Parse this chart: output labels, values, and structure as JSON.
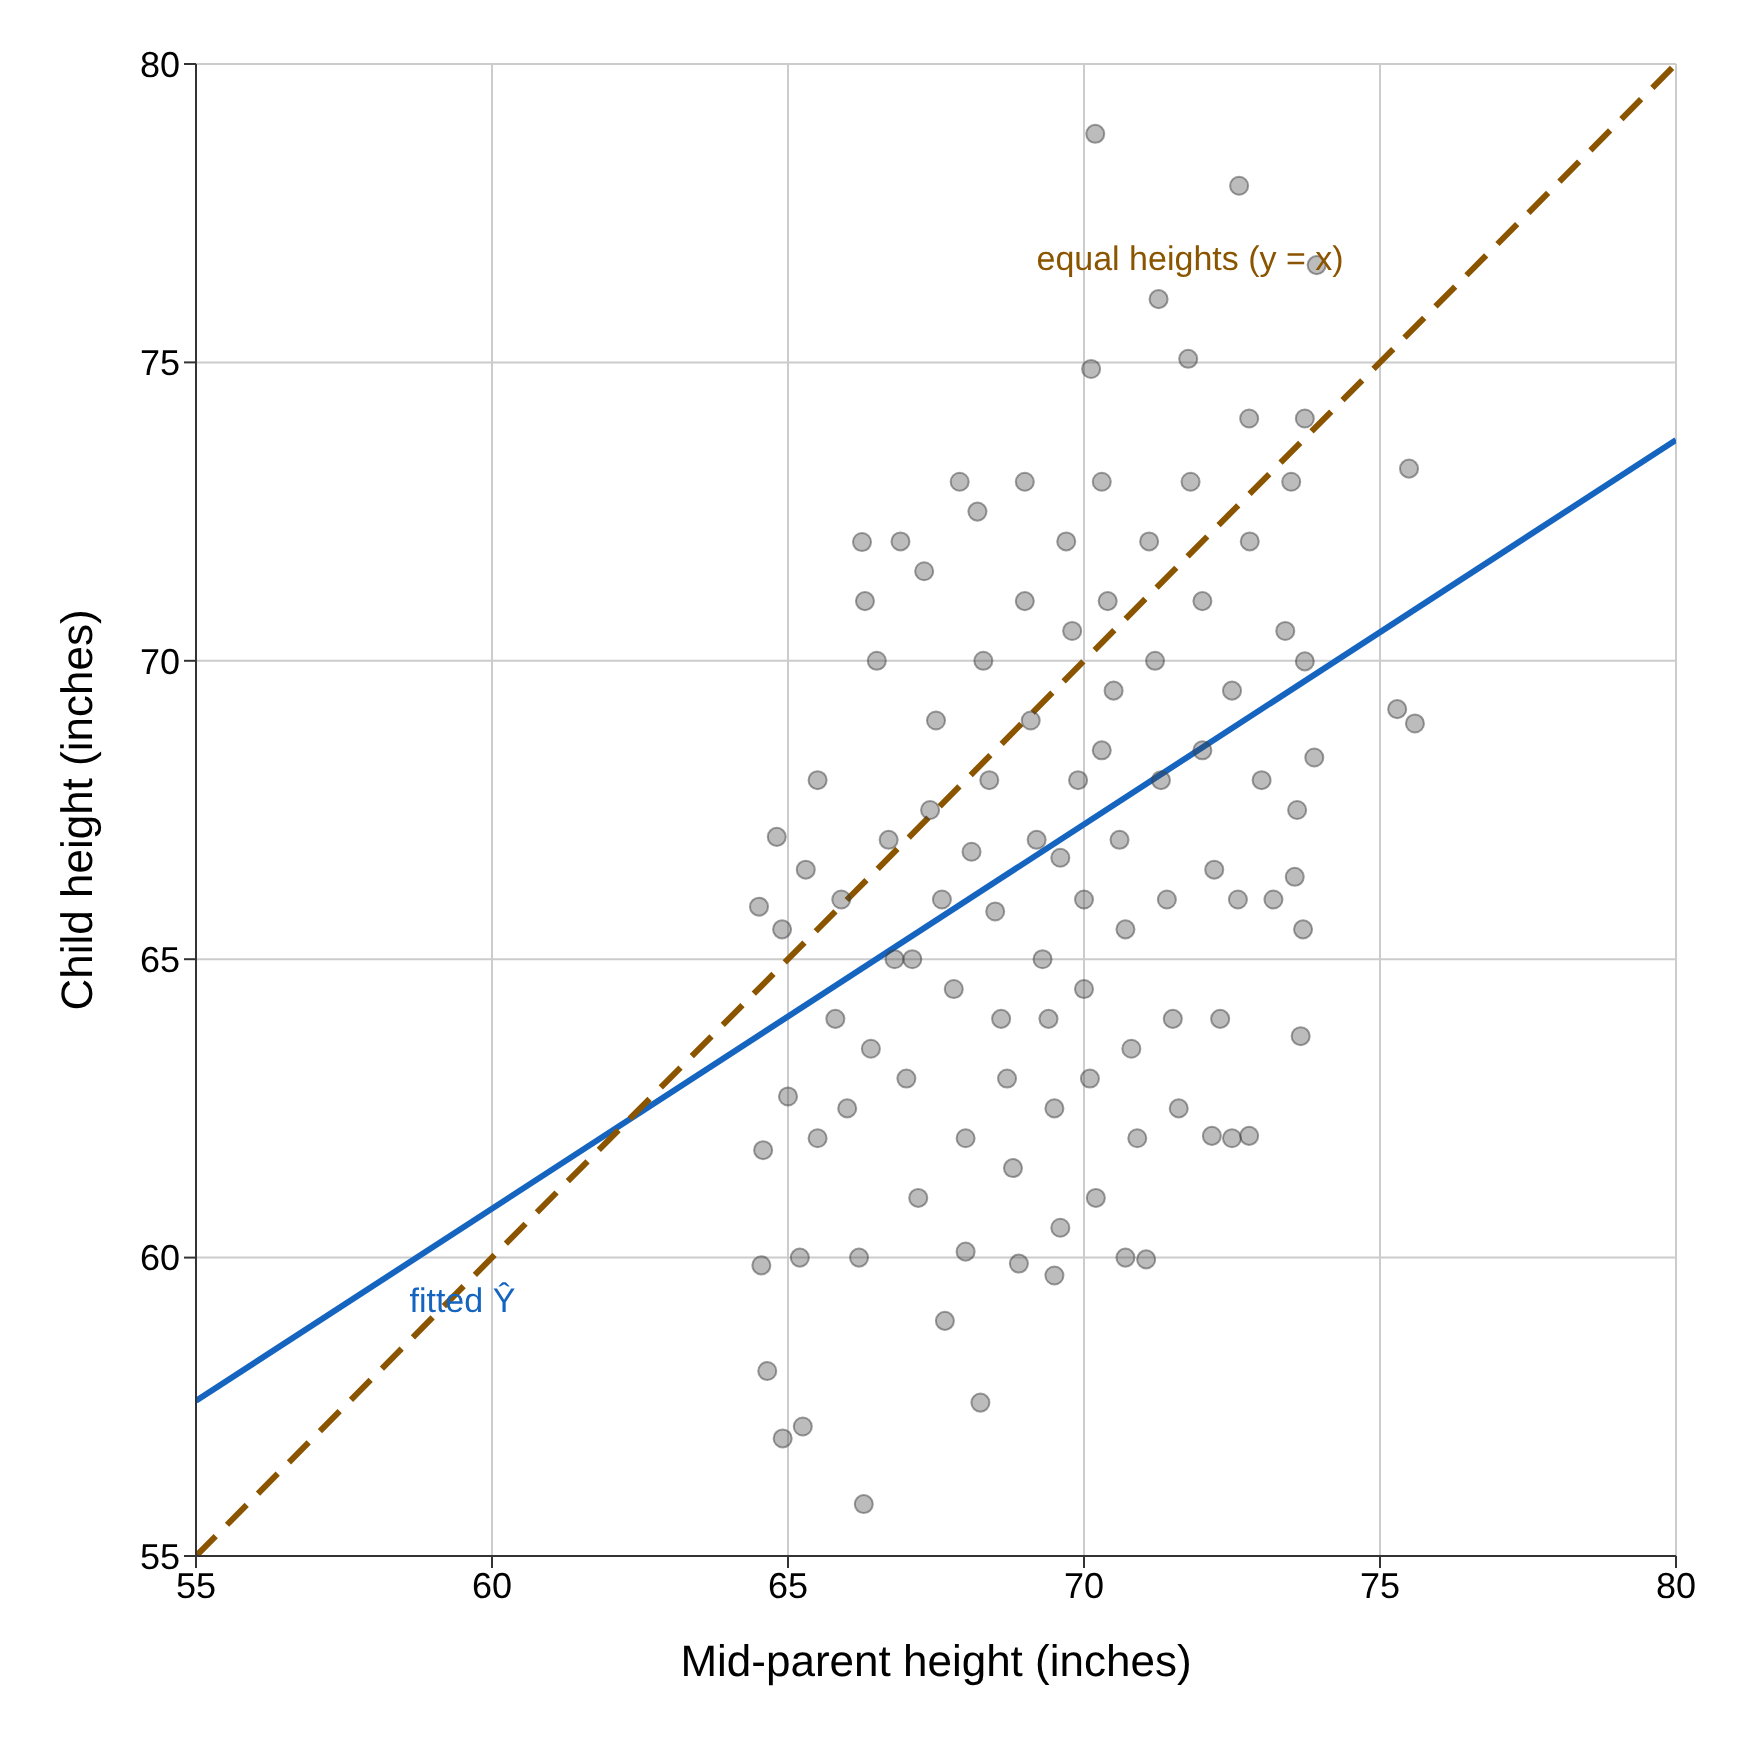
{
  "chart_data": {
    "type": "scatter",
    "xlabel": "Mid-parent height (inches)",
    "ylabel": "Child height (inches)",
    "xlim": [
      55,
      80
    ],
    "ylim": [
      55,
      80
    ],
    "xticks": [
      55,
      60,
      65,
      70,
      75,
      80
    ],
    "yticks": [
      55,
      60,
      65,
      70,
      75,
      80
    ],
    "grid": true,
    "series": [
      {
        "color": "#404040",
        "marker": "circle",
        "x": [
          70.19,
          72.62,
          73.93,
          71.26,
          71.76,
          70.12,
          75.49,
          75.29,
          75.59,
          73.73,
          73.66,
          71.05,
          68.25,
          66.28,
          64.65,
          64.91,
          65.25,
          64.55,
          64.58,
          64.51,
          64.81,
          66.25,
          67.65,
          72.79,
          72.16,
          73.56,
          73.89,
          73.73,
          72.79,
          65.5,
          65.3,
          65.8,
          66,
          66.2,
          66.5,
          66.7,
          66.8,
          67,
          67.2,
          67.3,
          67.5,
          67.6,
          67.8,
          68,
          68,
          68.2,
          68.3,
          68.4,
          68.5,
          68.6,
          68.7,
          68.8,
          69,
          69,
          69.1,
          69.2,
          69.3,
          69.4,
          69.5,
          69.6,
          69.7,
          69.8,
          69.9,
          70,
          70,
          70.1,
          70.2,
          70.3,
          70.4,
          70.5,
          70.6,
          70.7,
          70.8,
          70.9,
          71.1,
          71.2,
          71.3,
          71.4,
          71.5,
          71.6,
          71.8,
          72,
          72,
          72.2,
          72.3,
          72.5,
          72.6,
          72.8,
          73,
          73.2,
          73.5,
          73.4,
          73.6,
          73.7,
          66.3,
          66.9,
          67.9,
          67.4,
          68.9,
          69.5,
          70.7,
          65.5,
          65.2,
          65.9,
          66.4,
          67.1,
          68.1,
          69.6,
          70.3,
          72.5,
          64.9,
          65
        ],
        "values": [
          78.83,
          77.96,
          76.63,
          76.06,
          75.06,
          74.89,
          73.22,
          69.19,
          68.95,
          69.99,
          63.71,
          59.97,
          57.57,
          55.87,
          58.1,
          56.97,
          57.17,
          59.87,
          61.8,
          65.88,
          67.05,
          71.99,
          58.94,
          62.04,
          62.04,
          66.38,
          68.38,
          74.06,
          74.06,
          68,
          66.5,
          64,
          62.5,
          60,
          70,
          67,
          65,
          63,
          61,
          71.5,
          69,
          66,
          64.5,
          62,
          60.1,
          72.5,
          70,
          68,
          65.8,
          64,
          63,
          61.5,
          73,
          71,
          69,
          67,
          65,
          64,
          62.5,
          60.5,
          72,
          70.5,
          68,
          66,
          64.5,
          63,
          61,
          73,
          71,
          69.5,
          67,
          65.5,
          63.5,
          62,
          72,
          70,
          68,
          66,
          64,
          62.5,
          73,
          71,
          68.5,
          66.5,
          64,
          69.5,
          66,
          72,
          68,
          66,
          73,
          70.5,
          67.5,
          65.5,
          71,
          72,
          73,
          67.5,
          59.9,
          59.7,
          60,
          62,
          60,
          66,
          63.5,
          65,
          66.8,
          66.7,
          68.5,
          62,
          65.5,
          62.7
        ]
      },
      {
        "type": "line",
        "name": "fitted Ŷ",
        "color": "#1565c0",
        "line_style": "solid",
        "x": [
          55,
          80
        ],
        "values": [
          57.6,
          73.7
        ]
      },
      {
        "type": "line",
        "name": "equal heights (y = x)",
        "color": "#8b5500",
        "line_style": "dashed",
        "x": [
          55,
          80
        ],
        "values": [
          55,
          80
        ]
      }
    ]
  }
}
